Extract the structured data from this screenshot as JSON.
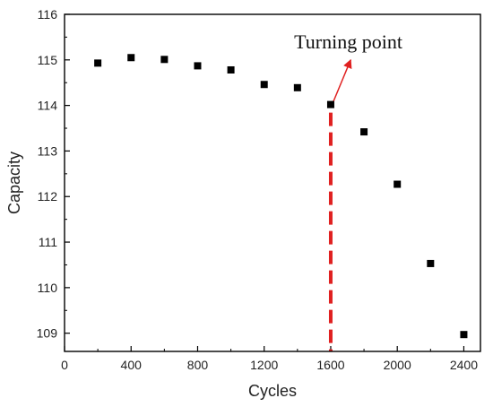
{
  "chart_data": {
    "type": "scatter",
    "xlabel": "Cycles",
    "ylabel": "Capacity",
    "xlim": [
      0,
      2500
    ],
    "ylim": [
      108.6,
      116
    ],
    "x_ticks": [
      0,
      400,
      800,
      1200,
      1600,
      2000,
      2400
    ],
    "x_tick_labels": [
      "0",
      "400",
      "800",
      "1200",
      "1600",
      "2000",
      "2400"
    ],
    "y_ticks": [
      109,
      110,
      111,
      112,
      113,
      114,
      115,
      116
    ],
    "y_tick_labels": [
      "109",
      "110",
      "111",
      "112",
      "113",
      "114",
      "115",
      "116"
    ],
    "grid": false,
    "legend": "none",
    "marker": "square",
    "marker_color": "#000000",
    "series": [
      {
        "x": [
          200,
          400,
          600,
          800,
          1000,
          1200,
          1400,
          1600,
          1800,
          2000,
          2200,
          2400
        ],
        "y": [
          114.93,
          115.05,
          115.01,
          114.87,
          114.78,
          114.46,
          114.39,
          114.02,
          113.42,
          112.27,
          110.53,
          108.97
        ]
      }
    ],
    "annotations": [
      {
        "text": "Turning point",
        "vline_x": 1600,
        "vline_color": "#e02020",
        "vline_style": "dashed",
        "arrow_from": [
          1600,
          114.0
        ],
        "arrow_to": [
          1720,
          115.0
        ],
        "arrow_color": "#e02020"
      }
    ]
  }
}
